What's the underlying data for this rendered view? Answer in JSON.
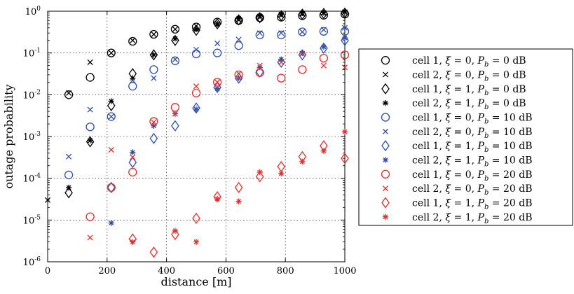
{
  "chart_data": {
    "type": "scatter",
    "title": "",
    "xlabel": "distance [m]",
    "ylabel": "outage probability",
    "xlim": [
      0,
      1000
    ],
    "ylim": [
      1e-06,
      1
    ],
    "yscale": "log",
    "grid": true,
    "legend_position": "right-outside",
    "x_ticks": [
      {
        "value": 0,
        "label": "0"
      },
      {
        "value": 200,
        "label": "200"
      },
      {
        "value": 400,
        "label": "400"
      },
      {
        "value": 600,
        "label": "600"
      },
      {
        "value": 800,
        "label": "800"
      },
      {
        "value": 1000,
        "label": "1000"
      }
    ],
    "y_ticks": [
      {
        "value": 1,
        "base": "10",
        "exp": "0"
      },
      {
        "value": 0.1,
        "base": "10",
        "exp": "-1"
      },
      {
        "value": 0.01,
        "base": "10",
        "exp": "-2"
      },
      {
        "value": 0.001,
        "base": "10",
        "exp": "-3"
      },
      {
        "value": 0.0001,
        "base": "10",
        "exp": "-4"
      },
      {
        "value": 1e-05,
        "base": "10",
        "exp": "-5"
      },
      {
        "value": 1e-06,
        "base": "10",
        "exp": "-6"
      }
    ],
    "series": [
      {
        "name": "cell 1, ξ = 0, P_b = 0 dB",
        "legend": {
          "pre": "cell 1, ",
          "xi": "ξ",
          "eq1": " = 0, ",
          "p": "P",
          "sub": "b",
          "eq2": " = 0 dB"
        },
        "marker": "circle",
        "color": "#000000",
        "x": [
          71,
          143,
          214,
          286,
          357,
          429,
          500,
          571,
          643,
          714,
          786,
          857,
          929,
          1000
        ],
        "y": [
          0.01,
          0.026,
          0.1,
          0.19,
          0.28,
          0.37,
          0.42,
          0.55,
          0.6,
          0.7,
          0.72,
          0.78,
          0.8,
          0.85
        ]
      },
      {
        "name": "cell 2, ξ = 0, P_b = 0 dB",
        "legend": {
          "pre": "cell 2, ",
          "xi": "ξ",
          "eq1": " = 0, ",
          "p": "P",
          "sub": "b",
          "eq2": " = 0 dB"
        },
        "marker": "x",
        "color": "#000000",
        "x": [
          0,
          71,
          143,
          214,
          286,
          357,
          429,
          500,
          571,
          643,
          714,
          786,
          857,
          929,
          1000
        ],
        "y": [
          3e-05,
          0.011,
          0.06,
          0.1,
          0.2,
          0.28,
          0.37,
          0.44,
          0.5,
          0.62,
          0.72,
          0.8,
          0.85,
          0.9,
          0.95
        ]
      },
      {
        "name": "cell 1, ξ = 1, P_b = 0 dB",
        "legend": {
          "pre": "cell 1, ",
          "xi": "ξ",
          "eq1": " = 1, ",
          "p": "P",
          "sub": "b",
          "eq2": " = 0 dB"
        },
        "marker": "diamond",
        "color": "#000000",
        "x": [
          71,
          143,
          214,
          286,
          357,
          429,
          500,
          571,
          643,
          714,
          786,
          857,
          929,
          1000
        ],
        "y": [
          4.5e-05,
          0.00075,
          0.0055,
          0.032,
          0.09,
          0.2,
          0.35,
          0.5,
          0.62,
          0.7,
          0.78,
          0.85,
          0.88,
          0.9
        ]
      },
      {
        "name": "cell 2, ξ = 1, P_b = 0 dB",
        "legend": {
          "pre": "cell 2, ",
          "xi": "ξ",
          "eq1": " = 1, ",
          "p": "P",
          "sub": "b",
          "eq2": " = 0 dB"
        },
        "marker": "star",
        "color": "#000000",
        "x": [
          71,
          143,
          214,
          286,
          357,
          429,
          500,
          571,
          643,
          714,
          786,
          857,
          929,
          1000
        ],
        "y": [
          6e-05,
          0.0008,
          0.007,
          0.025,
          0.09,
          0.22,
          0.37,
          0.5,
          0.68,
          0.78,
          0.85,
          0.9,
          0.92,
          0.95
        ]
      },
      {
        "name": "cell 1, ξ = 0, P_b = 10 dB",
        "legend": {
          "pre": "cell 1, ",
          "xi": "ξ",
          "eq1": " = 0, ",
          "p": "P",
          "sub": "b",
          "eq2": " = 10 dB"
        },
        "marker": "circle",
        "color": "#2e4fa6",
        "x": [
          71,
          143,
          214,
          286,
          357,
          429,
          500,
          571,
          643,
          714,
          786,
          857,
          929,
          1000
        ],
        "y": [
          0.00012,
          0.0017,
          0.003,
          0.016,
          0.04,
          0.065,
          0.095,
          0.1,
          0.15,
          0.27,
          0.27,
          0.32,
          0.33,
          0.33
        ]
      },
      {
        "name": "cell 2, ξ = 0, P_b = 10 dB",
        "legend": {
          "pre": "cell 2, ",
          "xi": "ξ",
          "eq1": " = 0, ",
          "p": "P",
          "sub": "b",
          "eq2": " = 10 dB"
        },
        "marker": "x",
        "color": "#2e4fa6",
        "x": [
          71,
          143,
          214,
          286,
          357,
          429,
          500,
          571,
          643,
          714,
          786,
          857,
          929,
          1000
        ],
        "y": [
          0.00033,
          0.0044,
          0.003,
          0.022,
          0.025,
          0.07,
          0.12,
          0.17,
          0.21,
          0.3,
          0.3,
          0.32,
          0.36,
          0.4
        ]
      },
      {
        "name": "cell 1, ξ = 1, P_b = 10 dB",
        "legend": {
          "pre": "cell 1, ",
          "xi": "ξ",
          "eq1": " = 1, ",
          "p": "P",
          "sub": "b",
          "eq2": " = 10 dB"
        },
        "marker": "diamond",
        "color": "#2e4fa6",
        "x": [
          214,
          286,
          357,
          429,
          500,
          571,
          643,
          714,
          786,
          857,
          929,
          1000
        ],
        "y": [
          6e-05,
          0.00024,
          0.0009,
          0.0018,
          0.0048,
          0.015,
          0.025,
          0.035,
          0.06,
          0.09,
          0.13,
          0.2
        ]
      },
      {
        "name": "cell 2, ξ = 1, P_b = 10 dB",
        "legend": {
          "pre": "cell 2, ",
          "xi": "ξ",
          "eq1": " = 1, ",
          "p": "P",
          "sub": "b",
          "eq2": " = 10 dB"
        },
        "marker": "star",
        "color": "#2e4fa6",
        "x": [
          214,
          286,
          357,
          429,
          500,
          571,
          643,
          714,
          786,
          857,
          929,
          1000
        ],
        "y": [
          8.5e-06,
          0.00042,
          0.0018,
          0.0035,
          0.0045,
          0.014,
          0.025,
          0.045,
          0.07,
          0.1,
          0.14,
          0.23
        ]
      },
      {
        "name": "cell 1, ξ = 0, P_b = 20 dB",
        "legend": {
          "pre": "cell 1, ",
          "xi": "ξ",
          "eq1": " = 0, ",
          "p": "P",
          "sub": "b",
          "eq2": " = 20 dB"
        },
        "marker": "circle",
        "color": "#e82c2c",
        "x": [
          143,
          214,
          286,
          357,
          429,
          500,
          571,
          643,
          714,
          786,
          857,
          929,
          1000
        ],
        "y": [
          1.2e-05,
          6e-05,
          0.00014,
          0.0023,
          0.005,
          0.011,
          0.02,
          0.03,
          0.034,
          0.025,
          0.04,
          0.075,
          0.09
        ]
      },
      {
        "name": "cell 2, ξ = 0, P_b = 20 dB",
        "legend": {
          "pre": "cell 2, ",
          "xi": "ξ",
          "eq1": " = 0, ",
          "p": "P",
          "sub": "b",
          "eq2": " = 20 dB"
        },
        "marker": "x",
        "color": "#e82c2c",
        "x": [
          143,
          214,
          286,
          357,
          429,
          500,
          571,
          643,
          714,
          786,
          857,
          929,
          1000
        ],
        "y": [
          3.8e-06,
          0.00048,
          0.00032,
          0.0022,
          0.0035,
          0.016,
          0.02,
          0.032,
          0.05,
          0.06,
          0.095,
          0.05,
          0.045
        ]
      },
      {
        "name": "cell 1, ξ = 1, P_b = 20 dB",
        "legend": {
          "pre": "cell 1, ",
          "xi": "ξ",
          "eq1": " = 1, ",
          "p": "P",
          "sub": "b",
          "eq2": " = 20 dB"
        },
        "marker": "diamond",
        "color": "#e82c2c",
        "x": [
          286,
          357,
          429,
          500,
          571,
          643,
          714,
          786,
          857,
          929,
          1000
        ],
        "y": [
          3.5e-06,
          1.7e-06,
          4.5e-06,
          1.1e-05,
          3.6e-05,
          6e-05,
          0.00011,
          0.00019,
          0.00033,
          0.0006,
          0.0003
        ]
      },
      {
        "name": "cell 2, ξ = 1, P_b = 20 dB",
        "legend": {
          "pre": "cell 2, ",
          "xi": "ξ",
          "eq1": " = 1, ",
          "p": "P",
          "sub": "b",
          "eq2": " = 20 dB"
        },
        "marker": "star",
        "color": "#e82c2c",
        "x": [
          286,
          429,
          500,
          571,
          643,
          714,
          786,
          857,
          929,
          1000
        ],
        "y": [
          3e-06,
          5.5e-06,
          3e-06,
          3.2e-05,
          2.8e-05,
          0.00014,
          0.00013,
          0.00025,
          0.00045,
          0.0013
        ]
      }
    ]
  }
}
